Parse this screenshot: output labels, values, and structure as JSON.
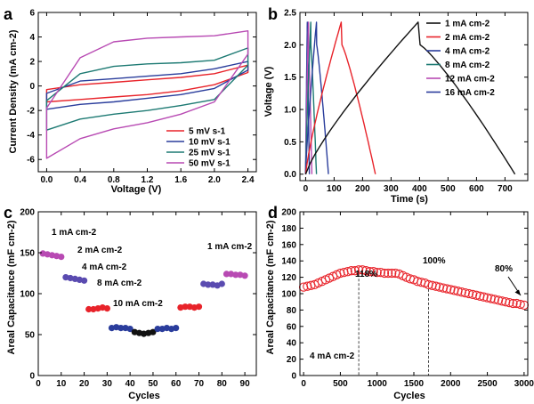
{
  "chart_data": [
    {
      "panel_letter": "a",
      "type": "line",
      "xlabel": "Voltage (V)",
      "ylabel": "Current Density (mA cm-2)",
      "xlim": [
        -0.1,
        2.5
      ],
      "ylim": [
        -7,
        6
      ],
      "x_ticks": [
        0.0,
        0.4,
        0.8,
        1.2,
        1.6,
        2.0,
        2.4
      ],
      "y_ticks": [
        -6,
        -4,
        -2,
        0,
        2,
        4,
        6
      ],
      "legend_position": "bottom-right",
      "series": [
        {
          "name": "5 mV s-1",
          "color": "#e8232a",
          "upper": [
            [
              0,
              -0.3
            ],
            [
              0.4,
              0.1
            ],
            [
              0.8,
              0.3
            ],
            [
              1.2,
              0.5
            ],
            [
              1.6,
              0.7
            ],
            [
              2.0,
              1.0
            ],
            [
              2.4,
              1.7
            ]
          ],
          "lower": [
            [
              0,
              -1.3
            ],
            [
              0.4,
              -1.1
            ],
            [
              0.8,
              -0.9
            ],
            [
              1.2,
              -0.7
            ],
            [
              1.6,
              -0.4
            ],
            [
              2.0,
              0.1
            ],
            [
              2.4,
              1.1
            ]
          ]
        },
        {
          "name": "10 mV s-1",
          "color": "#2a3d9c",
          "upper": [
            [
              0,
              -0.6
            ],
            [
              0.4,
              0.4
            ],
            [
              0.8,
              0.6
            ],
            [
              1.2,
              0.8
            ],
            [
              1.6,
              1.0
            ],
            [
              2.0,
              1.4
            ],
            [
              2.4,
              2.0
            ]
          ],
          "lower": [
            [
              0,
              -1.9
            ],
            [
              0.4,
              -1.5
            ],
            [
              0.8,
              -1.3
            ],
            [
              1.2,
              -1.0
            ],
            [
              1.6,
              -0.7
            ],
            [
              2.0,
              -0.2
            ],
            [
              2.4,
              1.3
            ]
          ]
        },
        {
          "name": "25 mV s-1",
          "color": "#1d7a73",
          "upper": [
            [
              0,
              -1.2
            ],
            [
              0.4,
              1.0
            ],
            [
              0.8,
              1.6
            ],
            [
              1.2,
              1.8
            ],
            [
              1.6,
              1.9
            ],
            [
              2.0,
              2.1
            ],
            [
              2.4,
              3.1
            ]
          ],
          "lower": [
            [
              0,
              -3.6
            ],
            [
              0.4,
              -2.7
            ],
            [
              0.8,
              -2.3
            ],
            [
              1.2,
              -2.0
            ],
            [
              1.6,
              -1.6
            ],
            [
              2.0,
              -1.1
            ],
            [
              2.4,
              1.7
            ]
          ]
        },
        {
          "name": "50 mV s-1",
          "color": "#b84ab3",
          "upper": [
            [
              0,
              -1.8
            ],
            [
              0.4,
              2.3
            ],
            [
              0.8,
              3.6
            ],
            [
              1.2,
              3.9
            ],
            [
              1.6,
              4.0
            ],
            [
              2.0,
              4.1
            ],
            [
              2.4,
              4.5
            ]
          ],
          "lower": [
            [
              0,
              -5.9
            ],
            [
              0.4,
              -4.3
            ],
            [
              0.8,
              -3.5
            ],
            [
              1.2,
              -3.0
            ],
            [
              1.6,
              -2.3
            ],
            [
              2.0,
              -1.3
            ],
            [
              2.4,
              2.6
            ]
          ]
        }
      ]
    },
    {
      "panel_letter": "b",
      "type": "line",
      "xlabel": "Time (s)",
      "ylabel": "Voltage (V)",
      "xlim": [
        -20,
        780
      ],
      "ylim": [
        -0.1,
        2.5
      ],
      "x_ticks": [
        0,
        100,
        200,
        300,
        400,
        500,
        600,
        700
      ],
      "y_ticks": [
        0.0,
        0.5,
        1.0,
        1.5,
        2.0,
        2.5
      ],
      "legend_position": "top-right",
      "series": [
        {
          "name": "1 mA cm-2",
          "color": "#111111",
          "charge_time": 395,
          "discharge_end": 735
        },
        {
          "name": "2 mA cm-2",
          "color": "#e8232a",
          "charge_time": 125,
          "discharge_end": 245
        },
        {
          "name": "4 mA cm-2",
          "color": "#2a3d9c",
          "charge_time": 38,
          "discharge_end": 80
        },
        {
          "name": "8 mA cm-2",
          "color": "#1d7a73",
          "charge_time": 18,
          "discharge_end": 38
        },
        {
          "name": "12 mA cm-2",
          "color": "#b84ab3",
          "charge_time": 10,
          "discharge_end": 22
        },
        {
          "name": "16 mA cm-2",
          "color": "#2a3d9c",
          "charge_time": 6,
          "discharge_end": 13
        }
      ]
    },
    {
      "panel_letter": "c",
      "type": "scatter",
      "xlabel": "Cycles",
      "ylabel": "Areal Capacitance (mF cm-2)",
      "xlim": [
        0,
        95
      ],
      "ylim": [
        0,
        200
      ],
      "x_ticks": [
        0,
        10,
        20,
        30,
        40,
        50,
        60,
        70,
        80,
        90
      ],
      "y_ticks": [
        0,
        50,
        100,
        150,
        200
      ],
      "annotations": [
        "1 mA cm-2",
        "2 mA cm-2",
        "4 mA cm-2",
        "8 mA cm-2",
        "10 mA cm-2",
        "1 mA cm-2"
      ],
      "series": [
        {
          "color": "#b84ab3",
          "x": [
            2,
            4,
            6,
            8,
            10
          ],
          "y": [
            149,
            148,
            147,
            146,
            145
          ]
        },
        {
          "color": "#5a4bb0",
          "x": [
            12,
            14,
            16,
            18,
            20
          ],
          "y": [
            120,
            119,
            118,
            117,
            116
          ]
        },
        {
          "color": "#e8232a",
          "x": [
            22,
            24,
            26,
            28,
            30
          ],
          "y": [
            81,
            81,
            82,
            83,
            82
          ]
        },
        {
          "color": "#2a3d9c",
          "x": [
            32,
            34,
            36,
            38,
            40
          ],
          "y": [
            58,
            59,
            58,
            58,
            57
          ]
        },
        {
          "color": "#111111",
          "x": [
            42,
            44,
            46,
            48,
            50
          ],
          "y": [
            53,
            52,
            51,
            52,
            53
          ]
        },
        {
          "color": "#2a3d9c",
          "x": [
            52,
            54,
            56,
            58,
            60
          ],
          "y": [
            57,
            57,
            58,
            57,
            58
          ]
        },
        {
          "color": "#e8232a",
          "x": [
            62,
            64,
            66,
            68,
            70
          ],
          "y": [
            83,
            84,
            84,
            83,
            84
          ]
        },
        {
          "color": "#5a4bb0",
          "x": [
            72,
            74,
            76,
            78,
            80
          ],
          "y": [
            112,
            111,
            111,
            110,
            112
          ]
        },
        {
          "color": "#b84ab3",
          "x": [
            82,
            84,
            86,
            88,
            90
          ],
          "y": [
            124,
            124,
            123,
            123,
            122
          ]
        }
      ]
    },
    {
      "panel_letter": "d",
      "type": "scatter",
      "xlabel": "Cycles",
      "ylabel": "Areal Capacitance (mF cm-2)",
      "xlim": [
        -50,
        3050
      ],
      "ylim": [
        0,
        200
      ],
      "x_ticks": [
        0,
        500,
        1000,
        1500,
        2000,
        2500,
        3000
      ],
      "y_ticks": [
        0,
        20,
        40,
        60,
        80,
        100,
        120,
        140,
        160,
        180,
        200
      ],
      "annotations": [
        "118%",
        "100%",
        "80%",
        "4 mA cm-2"
      ],
      "marker_color": "#e8232a",
      "vlines_at": [
        750,
        1700
      ],
      "x": [
        0,
        50,
        100,
        150,
        200,
        250,
        300,
        350,
        400,
        450,
        500,
        550,
        600,
        650,
        700,
        750,
        800,
        850,
        900,
        950,
        1000,
        1050,
        1100,
        1150,
        1200,
        1250,
        1300,
        1350,
        1400,
        1450,
        1500,
        1550,
        1600,
        1650,
        1700,
        1750,
        1800,
        1850,
        1900,
        1950,
        2000,
        2050,
        2100,
        2150,
        2200,
        2250,
        2300,
        2350,
        2400,
        2450,
        2500,
        2550,
        2600,
        2650,
        2700,
        2750,
        2800,
        2850,
        2900,
        2950,
        3000
      ],
      "y": [
        108,
        109,
        110,
        111,
        113,
        115,
        117,
        119,
        121,
        123,
        125,
        126,
        127,
        128,
        128,
        129,
        129,
        128,
        127,
        127,
        126,
        126,
        125,
        125,
        125,
        125,
        124,
        122,
        120,
        118,
        117,
        115,
        114,
        113,
        111,
        110,
        109,
        108,
        107,
        106,
        105,
        104,
        103,
        102,
        101,
        100,
        99,
        98,
        97,
        96,
        95,
        94,
        93,
        92,
        91,
        90,
        89,
        88,
        88,
        87,
        86
      ]
    }
  ]
}
